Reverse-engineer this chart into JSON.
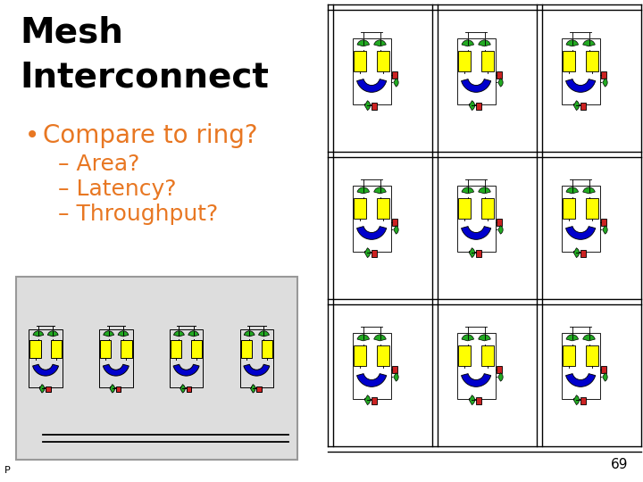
{
  "title_line1": "Mesh",
  "title_line2": "Interconnect",
  "title_color": "#000000",
  "title_fontsize": 28,
  "bullet_color": "#E87722",
  "bullet_text": "Compare to ring?",
  "bullet_fontsize": 20,
  "sub_items": [
    "– Area?",
    "– Latency?",
    "– Throughput?"
  ],
  "sub_fontsize": 18,
  "page_num": "69",
  "bg_color": "#ffffff",
  "yellow": "#FFFF00",
  "blue": "#0000CC",
  "green": "#22AA22",
  "red": "#CC2222",
  "black": "#000000",
  "gray_bg": "#DDDDDD"
}
